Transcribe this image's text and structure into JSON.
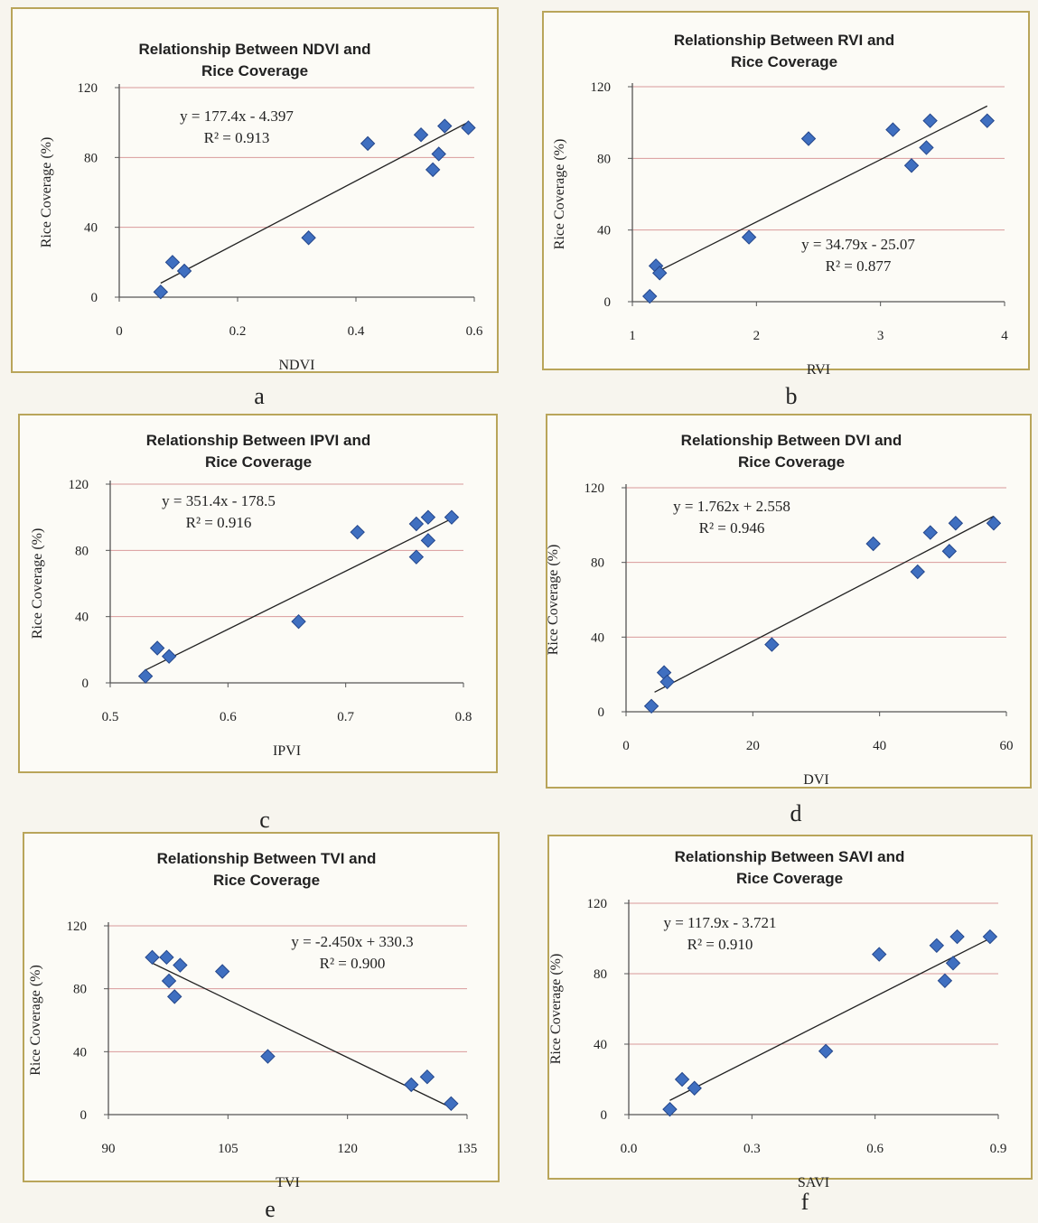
{
  "charts": [
    {
      "id": "a",
      "sub_label": "a",
      "chart_data": {
        "type": "scatter",
        "title": [
          "Relationship Between NDVI and",
          "Rice Coverage"
        ],
        "xlabel": "NDVI",
        "ylabel": "Rice Coverage (%)",
        "xlim": [
          0,
          0.6
        ],
        "ylim": [
          0,
          120
        ],
        "xticks": [
          "0",
          "0.2",
          "0.4",
          "0.6"
        ],
        "yticks": [
          "0",
          "40",
          "80",
          "120"
        ],
        "grid": "horizontal",
        "x": [
          0.07,
          0.09,
          0.11,
          0.32,
          0.42,
          0.51,
          0.53,
          0.54,
          0.55,
          0.59
        ],
        "y": [
          3,
          20,
          15,
          34,
          88,
          93,
          73,
          82,
          98,
          97
        ],
        "trendline": {
          "slope": 177.4,
          "intercept": -4.397,
          "x_range": [
            0.07,
            0.59
          ]
        },
        "equation": "y = 177.4x - 4.397",
        "r2": "R² = 0.913"
      }
    },
    {
      "id": "b",
      "sub_label": "b",
      "chart_data": {
        "type": "scatter",
        "title": [
          "Relationship Between RVI and",
          "Rice Coverage"
        ],
        "xlabel": "RVI",
        "ylabel": "Rice Coverage (%)",
        "xlim": [
          1,
          4
        ],
        "ylim": [
          0,
          120
        ],
        "xticks": [
          "1",
          "2",
          "3",
          "4"
        ],
        "yticks": [
          "0",
          "40",
          "80",
          "120"
        ],
        "grid": "horizontal",
        "x": [
          1.14,
          1.19,
          1.22,
          1.94,
          2.42,
          3.1,
          3.25,
          3.37,
          3.4,
          3.86
        ],
        "y": [
          3,
          20,
          16,
          36,
          91,
          96,
          76,
          86,
          101,
          101
        ],
        "trendline": {
          "slope": 34.79,
          "intercept": -25.07,
          "x_range": [
            1.17,
            3.86
          ]
        },
        "equation": "y = 34.79x - 25.07",
        "r2": "R² = 0.877"
      }
    },
    {
      "id": "c",
      "sub_label": "c",
      "chart_data": {
        "type": "scatter",
        "title": [
          "Relationship Between IPVI and",
          "Rice Coverage"
        ],
        "xlabel": "IPVI",
        "ylabel": "Rice Coverage (%)",
        "xlim": [
          0.5,
          0.8
        ],
        "ylim": [
          0,
          120
        ],
        "xticks": [
          "0.5",
          "0.6",
          "0.7",
          "0.8"
        ],
        "yticks": [
          "0",
          "40",
          "80",
          "120"
        ],
        "grid": "horizontal",
        "x": [
          0.53,
          0.54,
          0.55,
          0.66,
          0.71,
          0.76,
          0.76,
          0.77,
          0.77,
          0.79
        ],
        "y": [
          4,
          21,
          16,
          37,
          91,
          96,
          76,
          86,
          100,
          100
        ],
        "trendline": {
          "slope": 351.4,
          "intercept": -178.5,
          "x_range": [
            0.53,
            0.79
          ]
        },
        "equation": "y = 351.4x - 178.5",
        "r2": "R² = 0.916"
      }
    },
    {
      "id": "d",
      "sub_label": "d",
      "chart_data": {
        "type": "scatter",
        "title": [
          "Relationship Between DVI and",
          "Rice Coverage"
        ],
        "xlabel": "DVI",
        "ylabel": "Rice Coverage (%)",
        "xlim": [
          0,
          60
        ],
        "ylim": [
          0,
          120
        ],
        "xticks": [
          "0",
          "20",
          "40",
          "60"
        ],
        "yticks": [
          "0",
          "40",
          "80",
          "120"
        ],
        "grid": "horizontal",
        "x": [
          4,
          6,
          6.5,
          23,
          39,
          46,
          48,
          51,
          52,
          58
        ],
        "y": [
          3,
          21,
          16,
          36,
          90,
          75,
          96,
          86,
          101,
          101
        ],
        "trendline": {
          "slope": 1.762,
          "intercept": 2.558,
          "x_range": [
            4.5,
            58
          ]
        },
        "equation": "y = 1.762x + 2.558",
        "r2": "R² = 0.946"
      }
    },
    {
      "id": "e",
      "sub_label": "e",
      "chart_data": {
        "type": "scatter",
        "title": [
          "Relationship Between TVI and",
          "Rice Coverage"
        ],
        "xlabel": "TVI",
        "ylabel": "Rice Coverage (%)",
        "xlim": [
          90,
          135
        ],
        "ylim": [
          0,
          120
        ],
        "xticks": [
          "90",
          "105",
          "120",
          "135"
        ],
        "yticks": [
          "0",
          "40",
          "80",
          "120"
        ],
        "grid": "horizontal",
        "x": [
          95.5,
          97.3,
          97.6,
          98.3,
          99,
          104.3,
          110,
          128,
          130,
          133
        ],
        "y": [
          100,
          100,
          85,
          75,
          95,
          91,
          37,
          19,
          24,
          7
        ],
        "trendline": {
          "slope": -2.45,
          "intercept": 330.3,
          "x_range": [
            95.5,
            133
          ]
        },
        "equation": "y = -2.450x + 330.3",
        "r2": "R² = 0.900"
      }
    },
    {
      "id": "f",
      "sub_label": "f",
      "chart_data": {
        "type": "scatter",
        "title": [
          "Relationship Between SAVI and",
          "Rice Coverage"
        ],
        "xlabel": "SAVI",
        "ylabel": "Rice Coverage (%)",
        "xlim": [
          0,
          0.9
        ],
        "ylim": [
          0,
          120
        ],
        "xticks": [
          "0.0",
          "0.3",
          "0.6",
          "0.9"
        ],
        "yticks": [
          "0",
          "40",
          "80",
          "120"
        ],
        "grid": "horizontal",
        "x": [
          0.1,
          0.13,
          0.16,
          0.48,
          0.61,
          0.75,
          0.77,
          0.79,
          0.8,
          0.88
        ],
        "y": [
          3,
          20,
          15,
          36,
          91,
          96,
          76,
          86,
          101,
          101
        ],
        "trendline": {
          "slope": 117.9,
          "intercept": -3.721,
          "x_range": [
            0.1,
            0.88
          ]
        },
        "equation": "y = 117.9x - 3.721",
        "r2": "R² = 0.910"
      }
    }
  ],
  "colors": {
    "marker": "#3f6fc0",
    "marker_stroke": "#24468a",
    "trendline": "#222222",
    "grid": "#d99a9a",
    "frame": "#b9a55a"
  }
}
